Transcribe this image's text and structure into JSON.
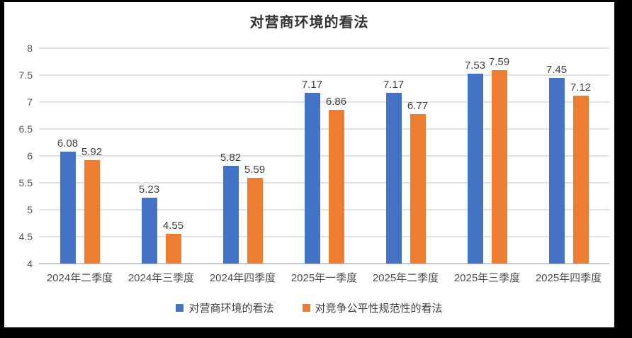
{
  "chart": {
    "title": "对营商环境的看法",
    "legend": [
      {
        "label": "对营商环境的看法",
        "color": "#4472C4"
      },
      {
        "label": "对竞争公平性规范性的看法",
        "color": "#ED7D31"
      }
    ],
    "colors": {
      "series1": "#4472C4",
      "series2": "#ED7D31",
      "gridline": "#e2e2e2",
      "frame": "#000000",
      "background": "#ffffff"
    }
  },
  "chart_data": {
    "type": "bar",
    "title": "对营商环境的看法",
    "categories": [
      "2024年二季度",
      "2024年三季度",
      "2024年四季度",
      "2025年一季度",
      "2025年二季度",
      "2025年三季度",
      "2025年四季度"
    ],
    "series": [
      {
        "name": "对营商环境的看法",
        "color": "#4472C4",
        "values": [
          6.08,
          5.23,
          5.82,
          7.17,
          7.17,
          7.53,
          7.45
        ]
      },
      {
        "name": "对竞争公平性规范性的看法",
        "color": "#ED7D31",
        "values": [
          5.92,
          4.55,
          5.59,
          6.86,
          6.77,
          7.59,
          7.12
        ]
      }
    ],
    "xlabel": "",
    "ylabel": "",
    "ylim": [
      4,
      8
    ],
    "ytick_step": 0.5,
    "yticks": [
      "4",
      "4.5",
      "5",
      "5.5",
      "6",
      "6.5",
      "7",
      "7.5",
      "8"
    ],
    "grid": true,
    "legend_position": "bottom",
    "data_labels": true
  }
}
